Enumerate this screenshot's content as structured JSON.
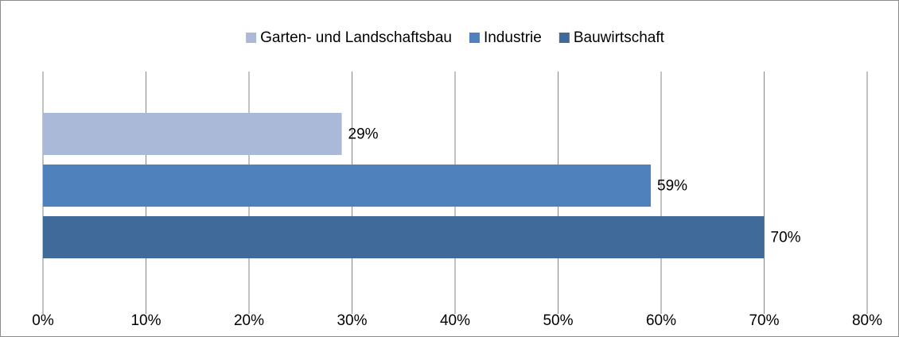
{
  "chart_data": {
    "type": "bar",
    "orientation": "horizontal",
    "categories": [
      null
    ],
    "series": [
      {
        "name": "Garten- und Landschaftsbau",
        "color": "#aab9d8",
        "values": [
          29
        ],
        "value_labels": [
          "29%"
        ]
      },
      {
        "name": "Industrie",
        "color": "#4f81bd",
        "values": [
          59
        ],
        "value_labels": [
          "59%"
        ]
      },
      {
        "name": "Bauwirtschaft",
        "color": "#3f6a99",
        "values": [
          70
        ],
        "value_labels": [
          "70%"
        ]
      }
    ],
    "xlim": [
      0,
      80
    ],
    "xticks": [
      {
        "value": 0,
        "label": "0%"
      },
      {
        "value": 10,
        "label": "10%"
      },
      {
        "value": 20,
        "label": "20%"
      },
      {
        "value": 30,
        "label": "30%"
      },
      {
        "value": 40,
        "label": "40%"
      },
      {
        "value": 50,
        "label": "50%"
      },
      {
        "value": 60,
        "label": "60%"
      },
      {
        "value": 70,
        "label": "70%"
      },
      {
        "value": 80,
        "label": "80%"
      }
    ],
    "grid": true,
    "legend": "top"
  }
}
